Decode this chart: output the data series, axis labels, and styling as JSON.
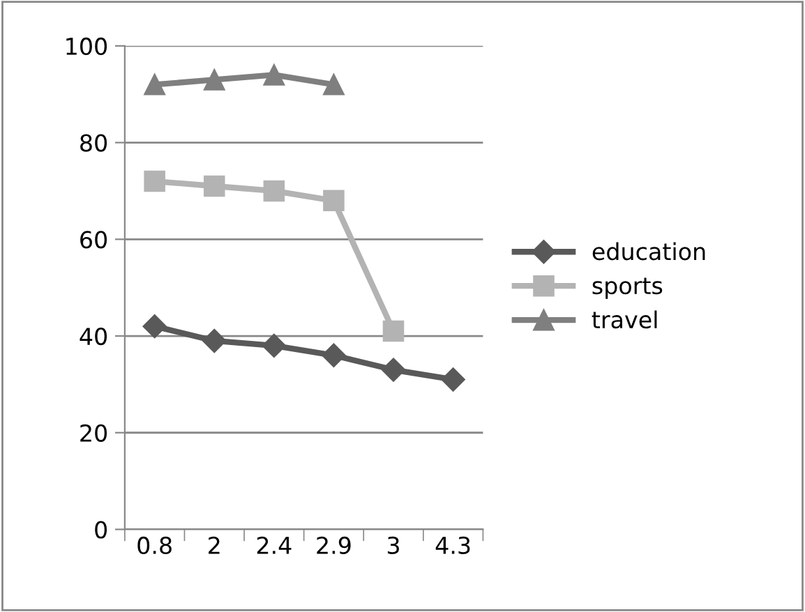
{
  "chart_data": {
    "type": "line",
    "categories": [
      "0.8",
      "2",
      "2.4",
      "2.9",
      "3",
      "4.3"
    ],
    "series": [
      {
        "name": "education",
        "color": "#595959",
        "marker": "diamond",
        "values": [
          42,
          39,
          38,
          36,
          33,
          31
        ]
      },
      {
        "name": "sports",
        "color": "#b3b3b3",
        "marker": "square",
        "values": [
          72,
          71,
          70,
          68,
          41,
          null
        ]
      },
      {
        "name": "travel",
        "color": "#7f7f7f",
        "marker": "triangle",
        "values": [
          92,
          93,
          94,
          92,
          null,
          null
        ]
      }
    ],
    "ylim": [
      0,
      100
    ],
    "yticks": [
      0,
      20,
      40,
      60,
      80,
      100
    ],
    "grid": "y",
    "legend": "right",
    "line_style": "solid"
  }
}
